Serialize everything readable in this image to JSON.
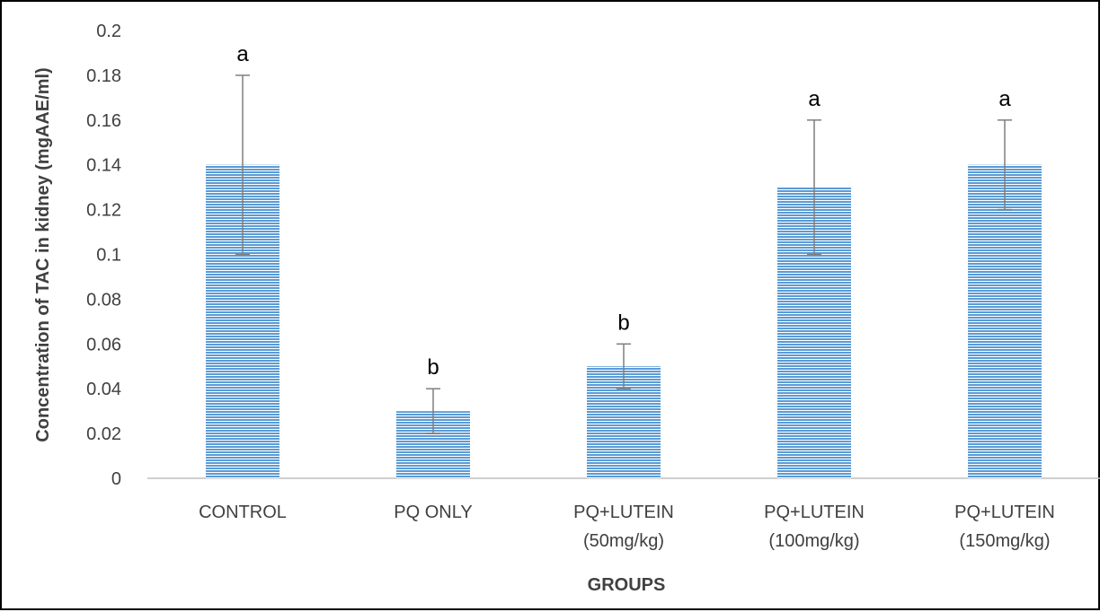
{
  "chart_data": {
    "type": "bar",
    "categories": [
      [
        "CONTROL"
      ],
      [
        "PQ ONLY"
      ],
      [
        "PQ+LUTEIN",
        "(50mg/kg)"
      ],
      [
        "PQ+LUTEIN",
        "(100mg/kg)"
      ],
      [
        "PQ+LUTEIN",
        "(150mg/kg)"
      ]
    ],
    "values": [
      0.14,
      0.03,
      0.05,
      0.13,
      0.14
    ],
    "error_low": [
      0.1,
      0.02,
      0.04,
      0.1,
      0.12
    ],
    "error_high": [
      0.18,
      0.04,
      0.06,
      0.16,
      0.16
    ],
    "significance_labels": [
      "a",
      "b",
      "b",
      "a",
      "a"
    ],
    "xlabel": "GROUPS",
    "ylabel": "Concentration of TAC in kidney (mgAAE/ml)",
    "ylim": [
      0,
      0.2
    ],
    "y_ticks": [
      "0",
      "0.02",
      "0.04",
      "0.06",
      "0.08",
      "0.1",
      "0.12",
      "0.14",
      "0.16",
      "0.18",
      "0.2"
    ],
    "grid": false,
    "legend": "none",
    "bar_color": "#5b9bd5",
    "bar_pattern": "horizontal-lines"
  }
}
